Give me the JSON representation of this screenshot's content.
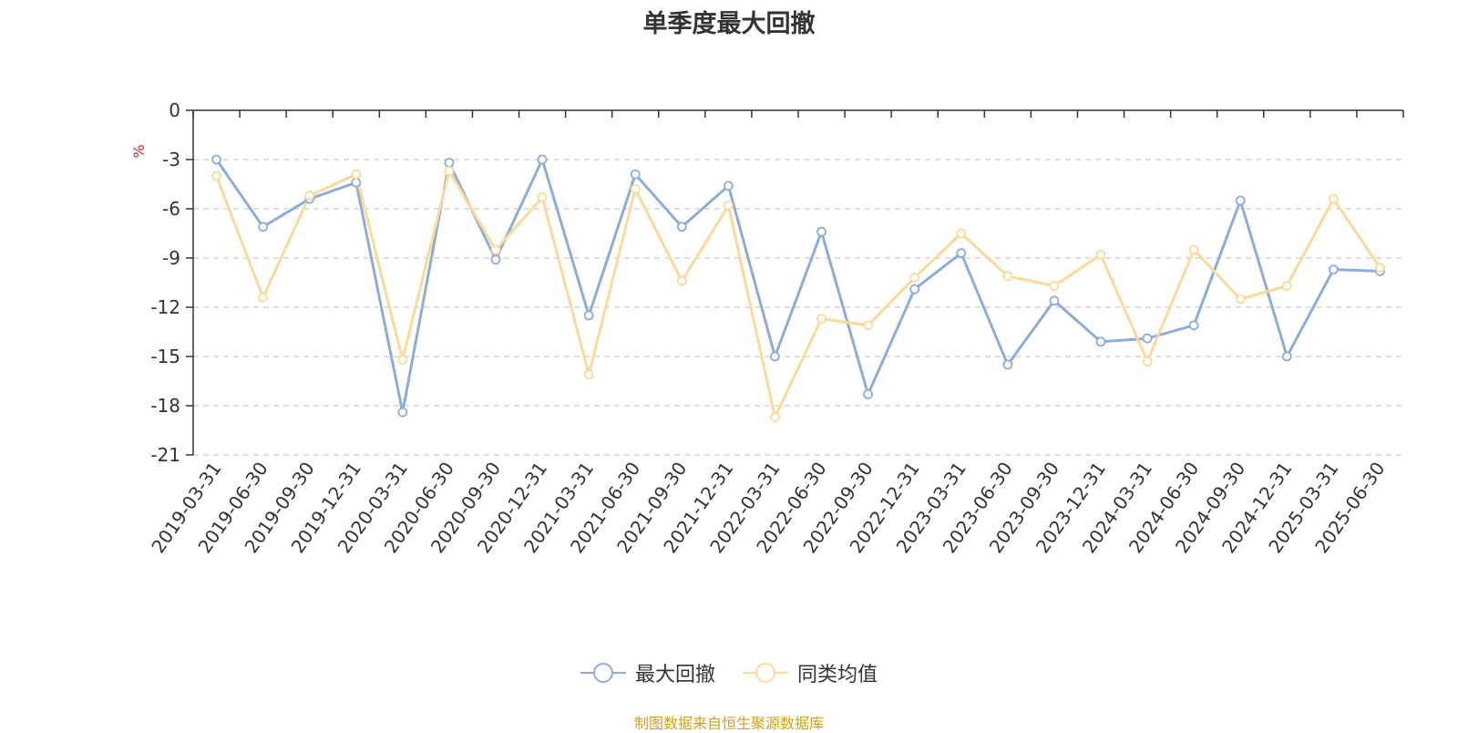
{
  "title": "单季度最大回撤",
  "source": "制图数据来自恒生聚源数据库",
  "colors": {
    "series1": "#8eacd8",
    "series2": "#fad99b",
    "grid": "#cccccc",
    "axis": "#333333",
    "unit": "#e02020"
  },
  "chart_data": {
    "type": "line",
    "title": "单季度最大回撤",
    "ylabel": "%",
    "ylim": [
      -21,
      0
    ],
    "yticks": [
      0,
      -3,
      -6,
      -9,
      -12,
      -15,
      -18,
      -21
    ],
    "grid": true,
    "legend_position": "bottom",
    "categories": [
      "2019-03-31",
      "2019-06-30",
      "2019-09-30",
      "2019-12-31",
      "2020-03-31",
      "2020-06-30",
      "2020-09-30",
      "2020-12-31",
      "2021-03-31",
      "2021-06-30",
      "2021-09-30",
      "2021-12-31",
      "2022-03-31",
      "2022-06-30",
      "2022-09-30",
      "2022-12-31",
      "2023-03-31",
      "2023-06-30",
      "2023-09-30",
      "2023-12-31",
      "2024-03-31",
      "2024-06-30",
      "2024-09-30",
      "2024-12-31",
      "2025-03-31",
      "2025-06-30"
    ],
    "series": [
      {
        "name": "最大回撤",
        "values": [
          -3.0,
          -7.1,
          -5.4,
          -4.4,
          -18.4,
          -3.2,
          -9.1,
          -3.0,
          -12.5,
          -3.9,
          -7.1,
          -4.6,
          -15.0,
          -7.4,
          -17.3,
          -10.9,
          -8.7,
          -15.5,
          -11.6,
          -14.1,
          -13.9,
          -13.1,
          -5.5,
          -15.0,
          -9.7,
          -9.8
        ]
      },
      {
        "name": "同类均值",
        "values": [
          -4.0,
          -11.4,
          -5.2,
          -3.9,
          -15.2,
          -3.7,
          -8.5,
          -5.3,
          -16.1,
          -4.8,
          -10.4,
          -5.8,
          -18.7,
          -12.7,
          -13.1,
          -10.2,
          -7.5,
          -10.1,
          -10.7,
          -8.8,
          -15.3,
          -8.5,
          -11.5,
          -10.7,
          -5.4,
          -9.6
        ]
      }
    ]
  }
}
